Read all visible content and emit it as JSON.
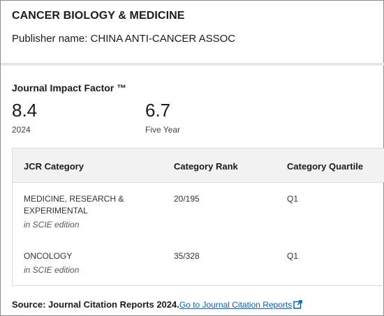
{
  "journal": {
    "title": "CANCER BIOLOGY & MEDICINE",
    "publisher": "Publisher name: CHINA ANTI-CANCER ASSOC"
  },
  "impact_factor": {
    "heading": "Journal Impact Factor ™",
    "metrics": [
      {
        "value": "8.4",
        "label": "2024"
      },
      {
        "value": "6.7",
        "label": "Five Year"
      }
    ]
  },
  "jcr_table": {
    "headers": [
      "JCR Category",
      "Category Rank",
      "Category Quartile"
    ],
    "rows": [
      {
        "category": "MEDICINE, RESEARCH & EXPERIMENTAL",
        "edition": "in SCIE edition",
        "rank": "20/195",
        "quartile": "Q1"
      },
      {
        "category": "ONCOLOGY",
        "edition": "in SCIE edition",
        "rank": "35/328",
        "quartile": "Q1"
      }
    ]
  },
  "source": {
    "label": "Source: Journal Citation Reports",
    "year": "2024.",
    "link_text": "Go to Journal Citation Reports",
    "link_icon": "external-link-icon",
    "link_color": "#0b5ea8"
  }
}
